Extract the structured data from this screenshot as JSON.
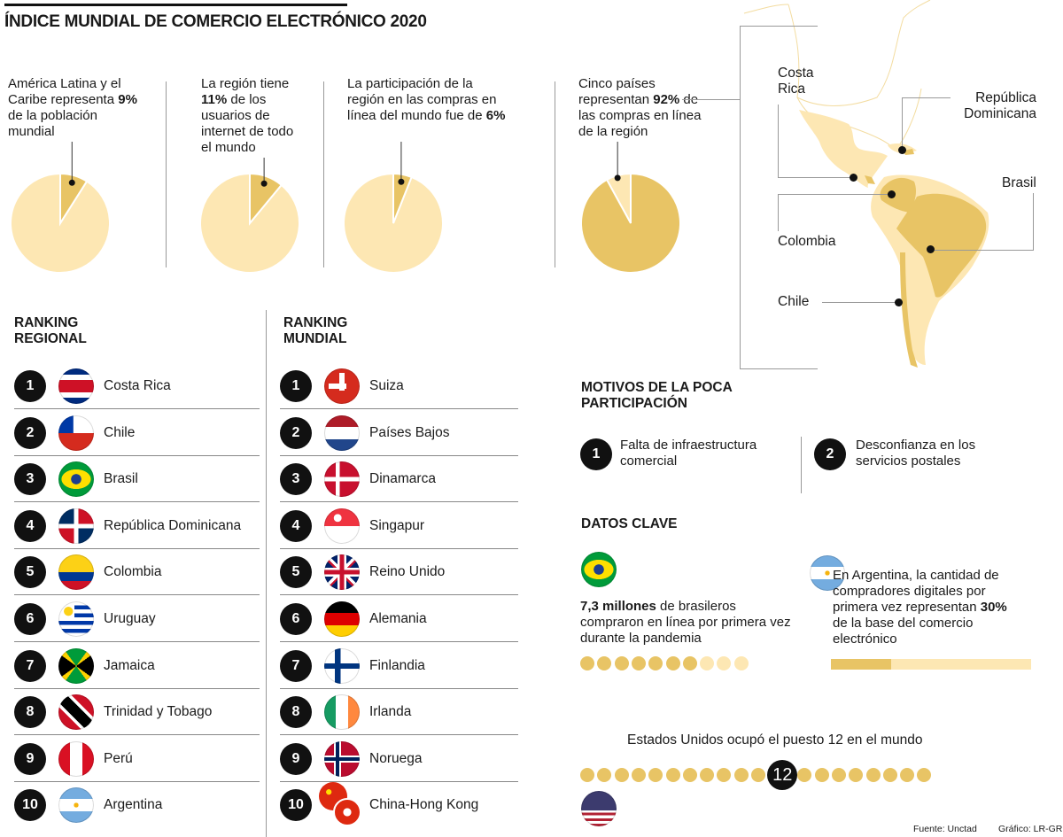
{
  "title": "ÍNDICE MUNDIAL DE COMERCIO ELECTRÓNICO 2020",
  "colors": {
    "light": "#fde7b3",
    "dark": "#e8c465",
    "ink": "#111111"
  },
  "chart_data": [
    {
      "type": "pie",
      "name": "poblacion",
      "highlight_value": 9,
      "rest_value": 91,
      "text_pre": "América Latina y el Caribe representa ",
      "text_bold": "9%",
      "text_post": " de la población mundial"
    },
    {
      "type": "pie",
      "name": "usuarios",
      "highlight_value": 11,
      "rest_value": 89,
      "text_pre": "La región tiene ",
      "text_bold": "11%",
      "text_post": " de los usuarios de internet de todo el mundo"
    },
    {
      "type": "pie",
      "name": "compras",
      "highlight_value": 6,
      "rest_value": 94,
      "text_pre": "La participación de la región en las compras en línea del mundo fue de ",
      "text_bold": "6%",
      "text_post": ""
    },
    {
      "type": "pie",
      "name": "cinco-paises",
      "highlight_value": 92,
      "rest_value": 8,
      "text_pre": "Cinco países representan ",
      "text_bold": "92%",
      "text_post": " de las compras en línea de la región"
    }
  ],
  "map": {
    "labels": {
      "costa_rica": "Costa Rica",
      "republica_dominicana": "República Dominicana",
      "brasil": "Brasil",
      "colombia": "Colombia",
      "chile": "Chile"
    }
  },
  "ranking_regional": {
    "title": "RANKING REGIONAL",
    "items": [
      {
        "rank": "1",
        "country": "Costa Rica",
        "flag": "costa-rica"
      },
      {
        "rank": "2",
        "country": "Chile",
        "flag": "chile"
      },
      {
        "rank": "3",
        "country": "Brasil",
        "flag": "brasil"
      },
      {
        "rank": "4",
        "country": "República Dominicana",
        "flag": "republica-dominicana"
      },
      {
        "rank": "5",
        "country": "Colombia",
        "flag": "colombia"
      },
      {
        "rank": "6",
        "country": "Uruguay",
        "flag": "uruguay"
      },
      {
        "rank": "7",
        "country": "Jamaica",
        "flag": "jamaica"
      },
      {
        "rank": "8",
        "country": "Trinidad y Tobago",
        "flag": "trinidad-y-tobago"
      },
      {
        "rank": "9",
        "country": "Perú",
        "flag": "peru"
      },
      {
        "rank": "10",
        "country": "Argentina",
        "flag": "argentina"
      }
    ]
  },
  "ranking_mundial": {
    "title": "RANKING MUNDIAL",
    "items": [
      {
        "rank": "1",
        "country": "Suiza",
        "flag": "suiza"
      },
      {
        "rank": "2",
        "country": "Países Bajos",
        "flag": "paises-bajos"
      },
      {
        "rank": "3",
        "country": "Dinamarca",
        "flag": "dinamarca"
      },
      {
        "rank": "4",
        "country": "Singapur",
        "flag": "singapur"
      },
      {
        "rank": "5",
        "country": "Reino Unido",
        "flag": "reino-unido"
      },
      {
        "rank": "6",
        "country": "Alemania",
        "flag": "alemania"
      },
      {
        "rank": "7",
        "country": "Finlandia",
        "flag": "finlandia"
      },
      {
        "rank": "8",
        "country": "Irlanda",
        "flag": "irlanda"
      },
      {
        "rank": "9",
        "country": "Noruega",
        "flag": "noruega"
      },
      {
        "rank": "10",
        "country": "China-Hong Kong",
        "flag": "china-hong-kong"
      }
    ]
  },
  "motivos": {
    "title": "MOTIVOS DE LA POCA PARTICIPACIÓN",
    "items": [
      {
        "num": "1",
        "text": "Falta de infraestructura comercial"
      },
      {
        "num": "2",
        "text": "Desconfianza en los servicios postales"
      }
    ]
  },
  "datos_clave": {
    "title": "DATOS CLAVE",
    "brasil": {
      "flag": "brasil",
      "bold": "7,3 millones",
      "text": " de brasileros compraron en línea por primera vez durante la pandemia",
      "dots_filled": 7,
      "dots_total": 10
    },
    "argentina": {
      "flag": "argentina",
      "pre": "En Argentina, la cantidad de compradores digitales por primera vez representan ",
      "bold": "30%",
      "post": " de la base del comercio electrónico",
      "percent": 30
    },
    "usa": {
      "flag": "estados-unidos",
      "text": "Estados Unidos ocupó el puesto 12 en el mundo",
      "rank": "12",
      "dots_total": 20
    }
  },
  "footer": {
    "source": "Fuente: Unctad",
    "credit": "Gráfico: LR-GR"
  }
}
